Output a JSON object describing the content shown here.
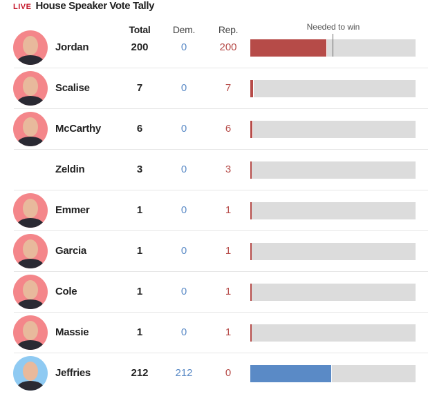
{
  "header": {
    "live": "LIVE",
    "title": "House Speaker Vote Tally"
  },
  "columns": {
    "total": "Total",
    "dem": "Dem.",
    "rep": "Rep.",
    "needed": "Needed to win"
  },
  "scale": {
    "total_seats": 433,
    "needed": 217
  },
  "colors": {
    "rep": "#b64b48",
    "dem": "#5a8ac6",
    "rep_avatar": "#f4868a",
    "dem_avatar": "#8fcaf2"
  },
  "candidates": [
    {
      "name": "Jordan",
      "total": "200",
      "dem": "0",
      "rep": "200",
      "party": "rep",
      "photo": true
    },
    {
      "name": "Scalise",
      "total": "7",
      "dem": "0",
      "rep": "7",
      "party": "rep",
      "photo": true
    },
    {
      "name": "McCarthy",
      "total": "6",
      "dem": "0",
      "rep": "6",
      "party": "rep",
      "photo": true
    },
    {
      "name": "Zeldin",
      "total": "3",
      "dem": "0",
      "rep": "3",
      "party": "rep",
      "photo": false
    },
    {
      "name": "Emmer",
      "total": "1",
      "dem": "0",
      "rep": "1",
      "party": "rep",
      "photo": true
    },
    {
      "name": "Garcia",
      "total": "1",
      "dem": "0",
      "rep": "1",
      "party": "rep",
      "photo": true
    },
    {
      "name": "Cole",
      "total": "1",
      "dem": "0",
      "rep": "1",
      "party": "rep",
      "photo": true
    },
    {
      "name": "Massie",
      "total": "1",
      "dem": "0",
      "rep": "1",
      "party": "rep",
      "photo": true
    },
    {
      "name": "Jeffries",
      "total": "212",
      "dem": "212",
      "rep": "0",
      "party": "dem",
      "photo": true
    }
  ]
}
